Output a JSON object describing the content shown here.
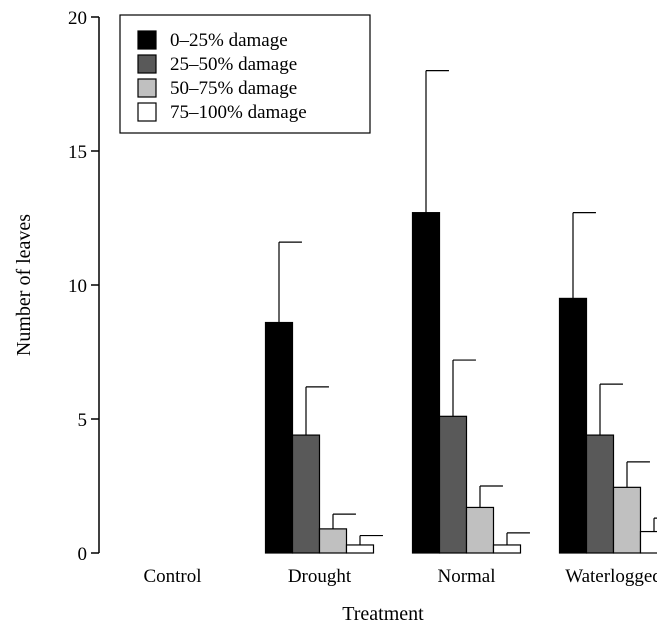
{
  "chart_data": {
    "type": "bar",
    "title": "",
    "xlabel": "Treatment",
    "ylabel": "Number of leaves",
    "ylim": [
      0,
      20
    ],
    "yticks": [
      0,
      5,
      10,
      15,
      20
    ],
    "categories": [
      "Control",
      "Drought",
      "Normal",
      "Waterlogged"
    ],
    "series": [
      {
        "name": "0–25% damage",
        "color": "#000000",
        "values": [
          0,
          8.6,
          12.7,
          9.5
        ],
        "errors": [
          0,
          3.0,
          5.3,
          3.2
        ]
      },
      {
        "name": "25–50% damage",
        "color": "#595959",
        "values": [
          0,
          4.4,
          5.1,
          4.4
        ],
        "errors": [
          0,
          1.8,
          2.1,
          1.9
        ]
      },
      {
        "name": "50–75% damage",
        "color": "#c0c0c0",
        "values": [
          0,
          0.9,
          1.7,
          2.45
        ],
        "errors": [
          0,
          0.55,
          0.8,
          0.95
        ]
      },
      {
        "name": "75–100% damage",
        "color": "#ffffff",
        "values": [
          0,
          0.3,
          0.3,
          0.8
        ],
        "errors": [
          0,
          0.35,
          0.45,
          0.5
        ]
      }
    ],
    "legend": {
      "position": "top-left"
    },
    "grid": false
  }
}
